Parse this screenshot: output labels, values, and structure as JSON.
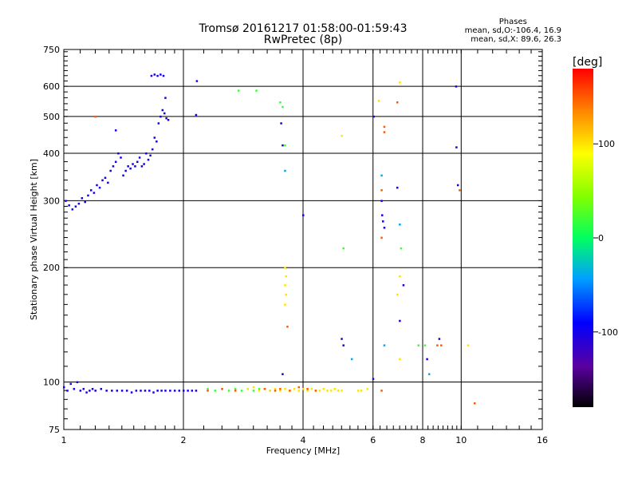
{
  "header": {
    "title_line1": "Tromsø 20161217 01:58:00-01:59:43",
    "title_line2": "RwPretec (8p)"
  },
  "phases": {
    "heading": "Phases",
    "line_o": "mean, sd,O:-106.4, 16.9",
    "line_x": "mean, sd,X: 89.6, 26.3"
  },
  "chart_data": {
    "type": "scatter",
    "title": "Tromsø 20161217 01:58:00-01:59:43",
    "subtitle": "RwPretec (8p)",
    "xlabel": "Frequency [MHz]",
    "ylabel": "Stationary phase Virtual Height [km]",
    "x_scale": "log",
    "y_scale": "log",
    "xlim": [
      1,
      16
    ],
    "ylim": [
      75,
      750
    ],
    "x_ticks": [
      "1",
      "2",
      "4",
      "6",
      "8",
      "10",
      "16"
    ],
    "x_tick_values": [
      1,
      2,
      4,
      6,
      8,
      10,
      16
    ],
    "y_ticks": [
      "75",
      "100",
      "200",
      "300",
      "400",
      "500",
      "600",
      "750"
    ],
    "y_tick_values": [
      75,
      100,
      200,
      300,
      400,
      500,
      600,
      750
    ],
    "grid": true,
    "colorbar": {
      "unit": "[deg]",
      "range": [
        -180,
        180
      ],
      "ticks": [
        "100",
        "0",
        "-100"
      ],
      "tick_values": [
        100,
        0,
        -100
      ]
    },
    "series": [
      {
        "phase_deg": -100,
        "points": [
          [
            1.0,
            97
          ],
          [
            1.02,
            95
          ],
          [
            1.04,
            99
          ],
          [
            1.06,
            96
          ],
          [
            1.08,
            100
          ],
          [
            1.1,
            95
          ],
          [
            1.12,
            96
          ],
          [
            1.14,
            94
          ],
          [
            1.16,
            95
          ],
          [
            1.18,
            96
          ],
          [
            1.2,
            95
          ],
          [
            1.24,
            96
          ],
          [
            1.28,
            95
          ],
          [
            1.32,
            95
          ],
          [
            1.36,
            95
          ],
          [
            1.4,
            95
          ],
          [
            1.44,
            95
          ],
          [
            1.48,
            94
          ],
          [
            1.52,
            95
          ],
          [
            1.56,
            95
          ],
          [
            1.6,
            95
          ],
          [
            1.64,
            95
          ],
          [
            1.68,
            94
          ],
          [
            1.72,
            95
          ],
          [
            1.76,
            95
          ],
          [
            1.8,
            95
          ],
          [
            1.85,
            95
          ],
          [
            1.9,
            95
          ],
          [
            1.95,
            95
          ],
          [
            2.0,
            95
          ],
          [
            2.05,
            95
          ],
          [
            2.1,
            95
          ],
          [
            2.15,
            95
          ],
          [
            1.01,
            300
          ],
          [
            1.03,
            292
          ],
          [
            1.05,
            285
          ],
          [
            1.07,
            290
          ],
          [
            1.09,
            295
          ],
          [
            1.11,
            305
          ],
          [
            1.13,
            298
          ],
          [
            1.15,
            310
          ],
          [
            1.17,
            320
          ],
          [
            1.19,
            315
          ],
          [
            1.21,
            330
          ],
          [
            1.23,
            325
          ],
          [
            1.25,
            340
          ],
          [
            1.27,
            345
          ],
          [
            1.29,
            335
          ],
          [
            1.31,
            360
          ],
          [
            1.33,
            370
          ],
          [
            1.35,
            380
          ],
          [
            1.37,
            400
          ],
          [
            1.39,
            390
          ],
          [
            1.41,
            350
          ],
          [
            1.43,
            360
          ],
          [
            1.45,
            370
          ],
          [
            1.47,
            365
          ],
          [
            1.49,
            375
          ],
          [
            1.51,
            370
          ],
          [
            1.53,
            380
          ],
          [
            1.55,
            390
          ],
          [
            1.57,
            370
          ],
          [
            1.59,
            375
          ],
          [
            1.61,
            400
          ],
          [
            1.63,
            385
          ],
          [
            1.65,
            395
          ],
          [
            1.67,
            410
          ],
          [
            1.69,
            440
          ],
          [
            1.71,
            430
          ],
          [
            1.73,
            480
          ],
          [
            1.75,
            500
          ],
          [
            1.77,
            520
          ],
          [
            1.79,
            510
          ],
          [
            1.81,
            495
          ],
          [
            1.83,
            490
          ],
          [
            1.35,
            460
          ],
          [
            1.66,
            640
          ],
          [
            1.69,
            645
          ],
          [
            1.72,
            640
          ],
          [
            1.75,
            645
          ],
          [
            1.78,
            640
          ],
          [
            1.8,
            560
          ],
          [
            2.15,
            505
          ],
          [
            2.16,
            620
          ],
          [
            3.52,
            480
          ],
          [
            3.55,
            420
          ],
          [
            4.0,
            275
          ],
          [
            5.0,
            130
          ],
          [
            5.05,
            125
          ],
          [
            6.0,
            102
          ],
          [
            6.02,
            500
          ],
          [
            6.3,
            300
          ],
          [
            6.32,
            275
          ],
          [
            6.35,
            265
          ],
          [
            6.4,
            255
          ],
          [
            6.9,
            325
          ],
          [
            7.0,
            145
          ],
          [
            7.15,
            180
          ],
          [
            8.2,
            115
          ],
          [
            8.8,
            130
          ],
          [
            9.7,
            600
          ],
          [
            9.72,
            415
          ],
          [
            9.8,
            330
          ],
          [
            3.55,
            105
          ]
        ]
      },
      {
        "phase_deg": -40,
        "points": [
          [
            3.6,
            360
          ],
          [
            5.3,
            115
          ],
          [
            6.3,
            350
          ],
          [
            6.4,
            125
          ],
          [
            7.0,
            260
          ],
          [
            8.3,
            105
          ]
        ]
      },
      {
        "phase_deg": 20,
        "points": [
          [
            2.3,
            96
          ],
          [
            2.4,
            95
          ],
          [
            2.5,
            96
          ],
          [
            2.6,
            95
          ],
          [
            2.7,
            96
          ],
          [
            2.8,
            95
          ],
          [
            2.9,
            96
          ],
          [
            3.0,
            95
          ],
          [
            3.1,
            96
          ],
          [
            3.2,
            96
          ],
          [
            3.3,
            95
          ],
          [
            2.75,
            585
          ],
          [
            3.05,
            585
          ],
          [
            3.5,
            545
          ],
          [
            3.55,
            530
          ],
          [
            3.6,
            420
          ],
          [
            5.05,
            225
          ],
          [
            7.05,
            225
          ],
          [
            7.8,
            125
          ],
          [
            8.1,
            125
          ]
        ]
      },
      {
        "phase_deg": 100,
        "points": [
          [
            2.9,
            96
          ],
          [
            3.0,
            97
          ],
          [
            3.1,
            95
          ],
          [
            3.2,
            96
          ],
          [
            3.3,
            95
          ],
          [
            3.4,
            96
          ],
          [
            3.5,
            95
          ],
          [
            3.6,
            96
          ],
          [
            3.7,
            95
          ],
          [
            3.8,
            96
          ],
          [
            3.9,
            95
          ],
          [
            4.0,
            96
          ],
          [
            4.1,
            95
          ],
          [
            4.2,
            96
          ],
          [
            4.3,
            95
          ],
          [
            4.4,
            95
          ],
          [
            4.5,
            96
          ],
          [
            4.6,
            95
          ],
          [
            4.7,
            95
          ],
          [
            4.8,
            96
          ],
          [
            4.9,
            95
          ],
          [
            5.0,
            95
          ],
          [
            5.5,
            95
          ],
          [
            5.6,
            95
          ],
          [
            5.8,
            96
          ],
          [
            3.6,
            200
          ],
          [
            3.62,
            190
          ],
          [
            3.6,
            180
          ],
          [
            3.62,
            170
          ],
          [
            3.6,
            160
          ],
          [
            5.0,
            445
          ],
          [
            7.0,
            615
          ],
          [
            7.0,
            190
          ],
          [
            6.9,
            170
          ],
          [
            7.0,
            115
          ],
          [
            10.4,
            125
          ],
          [
            6.2,
            550
          ]
        ]
      },
      {
        "phase_deg": 150,
        "points": [
          [
            2.3,
            95
          ],
          [
            2.5,
            96
          ],
          [
            2.7,
            95
          ],
          [
            3.2,
            96
          ],
          [
            3.4,
            95
          ],
          [
            3.5,
            96
          ],
          [
            3.7,
            95
          ],
          [
            3.9,
            97
          ],
          [
            4.1,
            96
          ],
          [
            4.3,
            95
          ],
          [
            6.3,
            320
          ],
          [
            6.3,
            240
          ],
          [
            6.3,
            95
          ],
          [
            6.4,
            470
          ],
          [
            6.4,
            455
          ],
          [
            9.9,
            320
          ],
          [
            8.7,
            125
          ],
          [
            8.9,
            125
          ],
          [
            10.8,
            88
          ],
          [
            1.2,
            500
          ],
          [
            6.9,
            545
          ],
          [
            3.65,
            140
          ]
        ]
      }
    ]
  }
}
